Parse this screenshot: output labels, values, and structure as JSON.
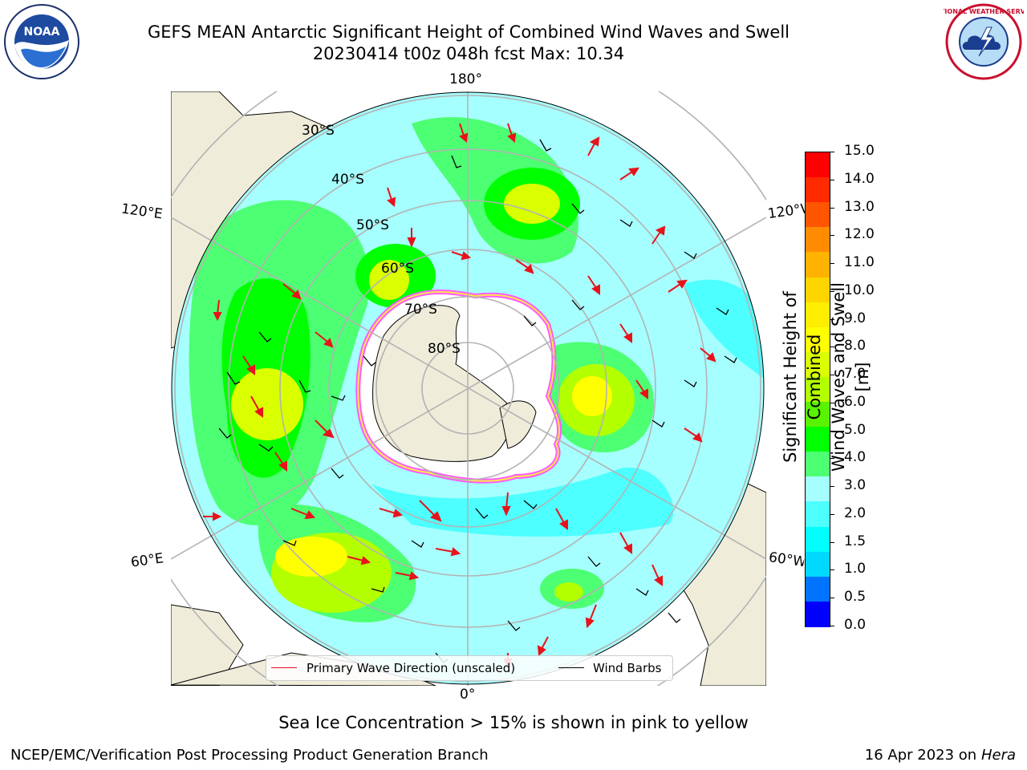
{
  "header": {
    "title_line1": "GEFS MEAN Antarctic Significant Height of Combined Wind Waves and Swell",
    "title_line2": "20230414 t00z 048h fcst   Max: 10.34"
  },
  "map": {
    "projection": "south polar stereographic",
    "longitude_labels": {
      "top": "180°",
      "bottom": "0°",
      "upper_left": "120°E",
      "upper_right": "120°W",
      "lower_left": "60°E",
      "lower_right": "60°W"
    },
    "latitude_labels": [
      "30°S",
      "40°S",
      "50°S",
      "60°S",
      "70°S",
      "80°S"
    ],
    "colors": {
      "land": "#efecda",
      "coast": "#000000",
      "grid": "#b3b3b3",
      "wave_arrow": "#e8121b",
      "wind_barb": "#000000",
      "ice_pink": "#ff5aff",
      "ice_yellow": "#ffe64b"
    }
  },
  "legend": {
    "items": [
      {
        "label": "Primary Wave Direction (unscaled)",
        "color": "#e8121b"
      },
      {
        "label": "Wind Barbs",
        "color": "#000000"
      }
    ]
  },
  "colorbar": {
    "label_line1": "Significant Height of Combined",
    "label_line2": "Wind Waves and Swell [m]",
    "ticks": [
      "0.0",
      "0.5",
      "1.0",
      "1.5",
      "2.0",
      "3.0",
      "4.0",
      "5.0",
      "6.0",
      "7.0",
      "8.0",
      "9.0",
      "10.0",
      "11.0",
      "12.0",
      "13.0",
      "14.0",
      "15.0"
    ],
    "colors": [
      "#0000ff",
      "#0073ff",
      "#00d9ff",
      "#00ffff",
      "#4dffff",
      "#a6ffff",
      "#4dff73",
      "#00ff00",
      "#59f200",
      "#b3ff00",
      "#d9ff00",
      "#ffff00",
      "#ffee00",
      "#ffd500",
      "#ffb300",
      "#ff8c00",
      "#ff5500",
      "#ff2a00",
      "#ff0000"
    ]
  },
  "notes": {
    "ice": "Sea Ice Concentration > 15% is shown in pink to yellow"
  },
  "footer": {
    "left": "NCEP/EMC/Verification Post Processing Product Generation Branch",
    "right_date": "16 Apr 2023 on ",
    "right_machine": "Hera"
  },
  "logos": {
    "noaa_text": "NOAA",
    "noaa_ring": "NATIONAL OCEANIC AND ATMOSPHERIC ADMINISTRATION · U.S. DEPARTMENT OF COMMERCE",
    "nws_ring": "NATIONAL WEATHER SERVICE"
  }
}
